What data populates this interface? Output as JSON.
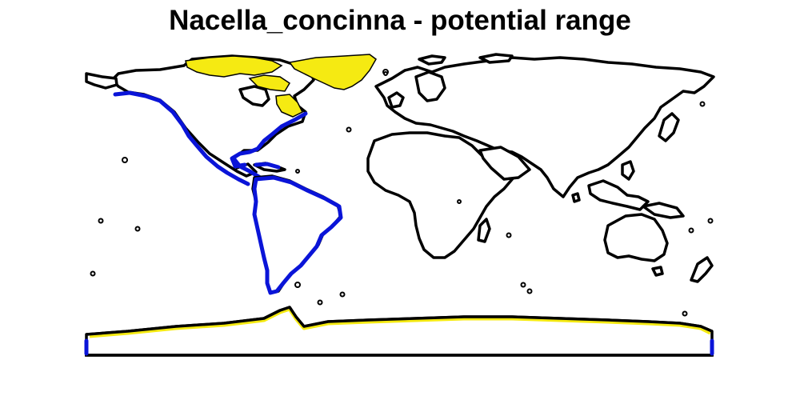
{
  "title": "Nacella_concinna - potential range",
  "colors": {
    "range_primary": "#0a14d8",
    "range_secondary": "#f5ea12",
    "outline": "#000000",
    "background": "#ffffff"
  }
}
